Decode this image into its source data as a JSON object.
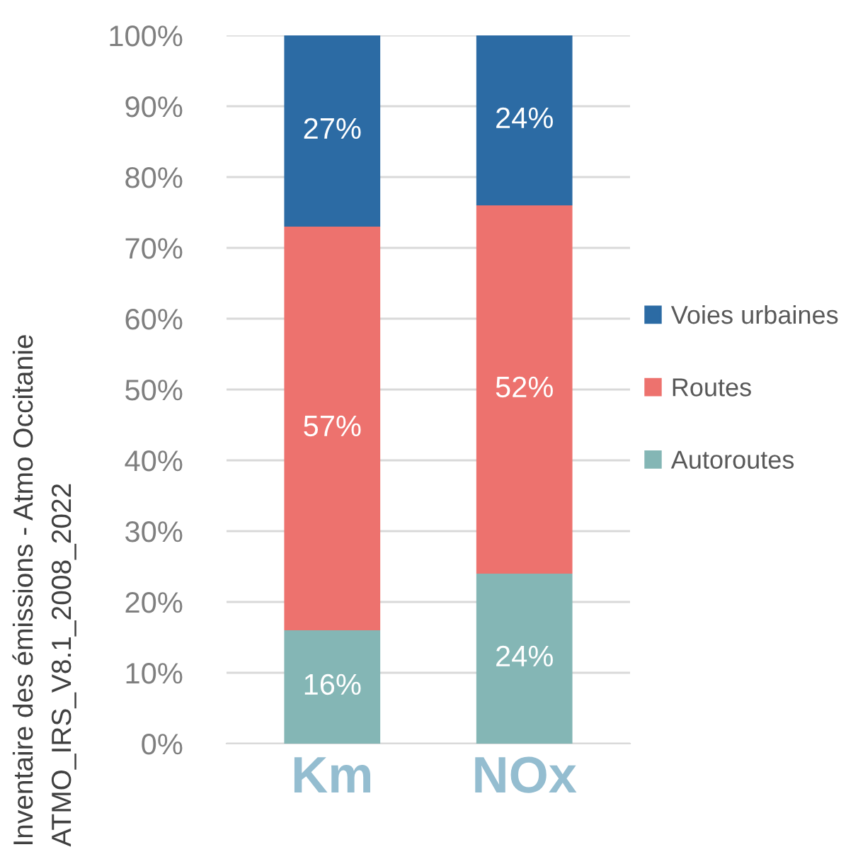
{
  "chart_data": {
    "type": "bar",
    "stacked": true,
    "categories": [
      "Km",
      "NOx"
    ],
    "series": [
      {
        "name": "Autoroutes",
        "color": "#84b6b5",
        "values": [
          16,
          24
        ],
        "value_labels": [
          "16%",
          "24%"
        ]
      },
      {
        "name": "Routes",
        "color": "#ed726e",
        "values": [
          57,
          52
        ],
        "value_labels": [
          "57%",
          "52%"
        ]
      },
      {
        "name": "Voies urbaines",
        "color": "#2c6ba4",
        "values": [
          27,
          24
        ],
        "value_labels": [
          "27%",
          "24%"
        ]
      }
    ],
    "ylim": [
      0,
      100
    ],
    "yticks": [
      {
        "value": 0,
        "label": "0%"
      },
      {
        "value": 10,
        "label": "10%"
      },
      {
        "value": 20,
        "label": "20%"
      },
      {
        "value": 30,
        "label": "30%"
      },
      {
        "value": 40,
        "label": "40%"
      },
      {
        "value": 50,
        "label": "50%"
      },
      {
        "value": 60,
        "label": "60%"
      },
      {
        "value": 70,
        "label": "70%"
      },
      {
        "value": 80,
        "label": "80%"
      },
      {
        "value": 90,
        "label": "90%"
      },
      {
        "value": 100,
        "label": "100%"
      }
    ],
    "grid": "y",
    "legend": "right",
    "annotations": [
      "Inventaire des émissions - Atmo Occitanie",
      "ATMO_IRS_V8.1_2008_2022"
    ]
  }
}
